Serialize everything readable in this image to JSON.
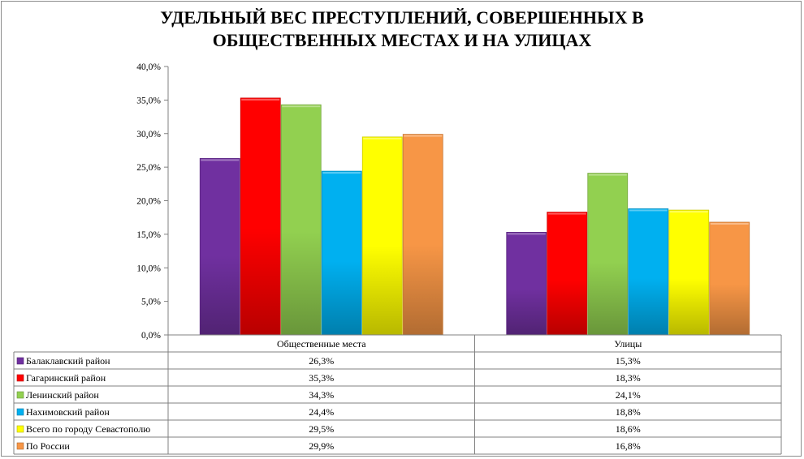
{
  "chart_data": {
    "type": "bar",
    "title_line1": "УДЕЛЬНЫЙ ВЕС  ПРЕСТУПЛЕНИЙ, СОВЕРШЕННЫХ В",
    "title_line2": "ОБЩЕСТВЕННЫХ МЕСТАХ  И НА УЛИЦАХ",
    "categories": [
      "Общественные места",
      "Улицы"
    ],
    "ylim": [
      0,
      40
    ],
    "yticks": [
      "0,0%",
      "5,0%",
      "10,0%",
      "15,0%",
      "20,0%",
      "25,0%",
      "30,0%",
      "35,0%",
      "40,0%"
    ],
    "grid": false,
    "legend_placement": "data-table-left",
    "series": [
      {
        "name": "Балаклавский  район",
        "values": [
          26.3,
          15.3
        ],
        "labels": [
          "26,3%",
          "15,3%"
        ],
        "color": "#7030a0"
      },
      {
        "name": "Гагаринский район",
        "values": [
          35.3,
          18.3
        ],
        "labels": [
          "35,3%",
          "18,3%"
        ],
        "color": "#ff0000"
      },
      {
        "name": "Ленинский район",
        "values": [
          34.3,
          24.1
        ],
        "labels": [
          "34,3%",
          "24,1%"
        ],
        "color": "#92d050"
      },
      {
        "name": "Нахимовский  район",
        "values": [
          24.4,
          18.8
        ],
        "labels": [
          "24,4%",
          "18,8%"
        ],
        "color": "#00b0f0"
      },
      {
        "name": "Всего по городу Севастополю",
        "values": [
          29.5,
          18.6
        ],
        "labels": [
          "29,5%",
          "18,6%"
        ],
        "color": "#ffff00"
      },
      {
        "name": "По России",
        "values": [
          29.9,
          16.8
        ],
        "labels": [
          "29,9%",
          "16,8%"
        ],
        "color": "#f79646"
      }
    ]
  }
}
